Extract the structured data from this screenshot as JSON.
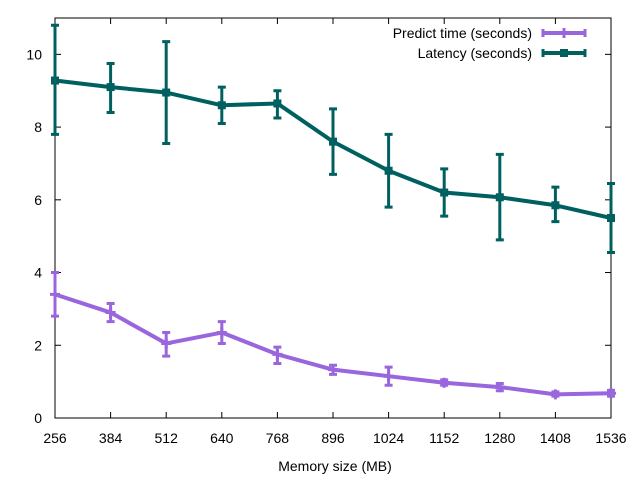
{
  "chart_data": {
    "type": "line",
    "title": "",
    "xlabel": "Memory size (MB)",
    "ylabel": "",
    "x": [
      256,
      384,
      512,
      640,
      768,
      896,
      1024,
      1152,
      1280,
      1408,
      1536
    ],
    "xlim": [
      256,
      1536
    ],
    "ylim": [
      0,
      11
    ],
    "yticks": [
      0,
      2,
      4,
      6,
      8,
      10
    ],
    "grid": false,
    "legend_position": "top-right",
    "series": [
      {
        "name": "Predict time (seconds)",
        "color": "#9966dd",
        "marker": "cross",
        "values": [
          3.4,
          2.9,
          2.05,
          2.35,
          1.75,
          1.33,
          1.15,
          0.97,
          0.85,
          0.65,
          0.68
        ],
        "err_low": [
          2.8,
          2.65,
          1.7,
          2.05,
          1.5,
          1.2,
          0.9,
          0.9,
          0.75,
          0.6,
          0.6
        ],
        "err_high": [
          4.0,
          3.15,
          2.35,
          2.65,
          1.95,
          1.45,
          1.4,
          1.05,
          0.95,
          0.72,
          0.76
        ]
      },
      {
        "name": "Latency (seconds)",
        "color": "#006060",
        "marker": "square",
        "values": [
          9.28,
          9.1,
          8.95,
          8.6,
          8.65,
          7.6,
          6.8,
          6.2,
          6.07,
          5.85,
          5.5
        ],
        "err_low": [
          7.8,
          8.4,
          7.55,
          8.1,
          8.25,
          6.7,
          5.8,
          5.55,
          4.9,
          5.4,
          4.55
        ],
        "err_high": [
          10.8,
          9.75,
          10.35,
          9.1,
          9.0,
          8.5,
          7.8,
          6.85,
          7.25,
          6.35,
          6.45
        ]
      }
    ]
  }
}
